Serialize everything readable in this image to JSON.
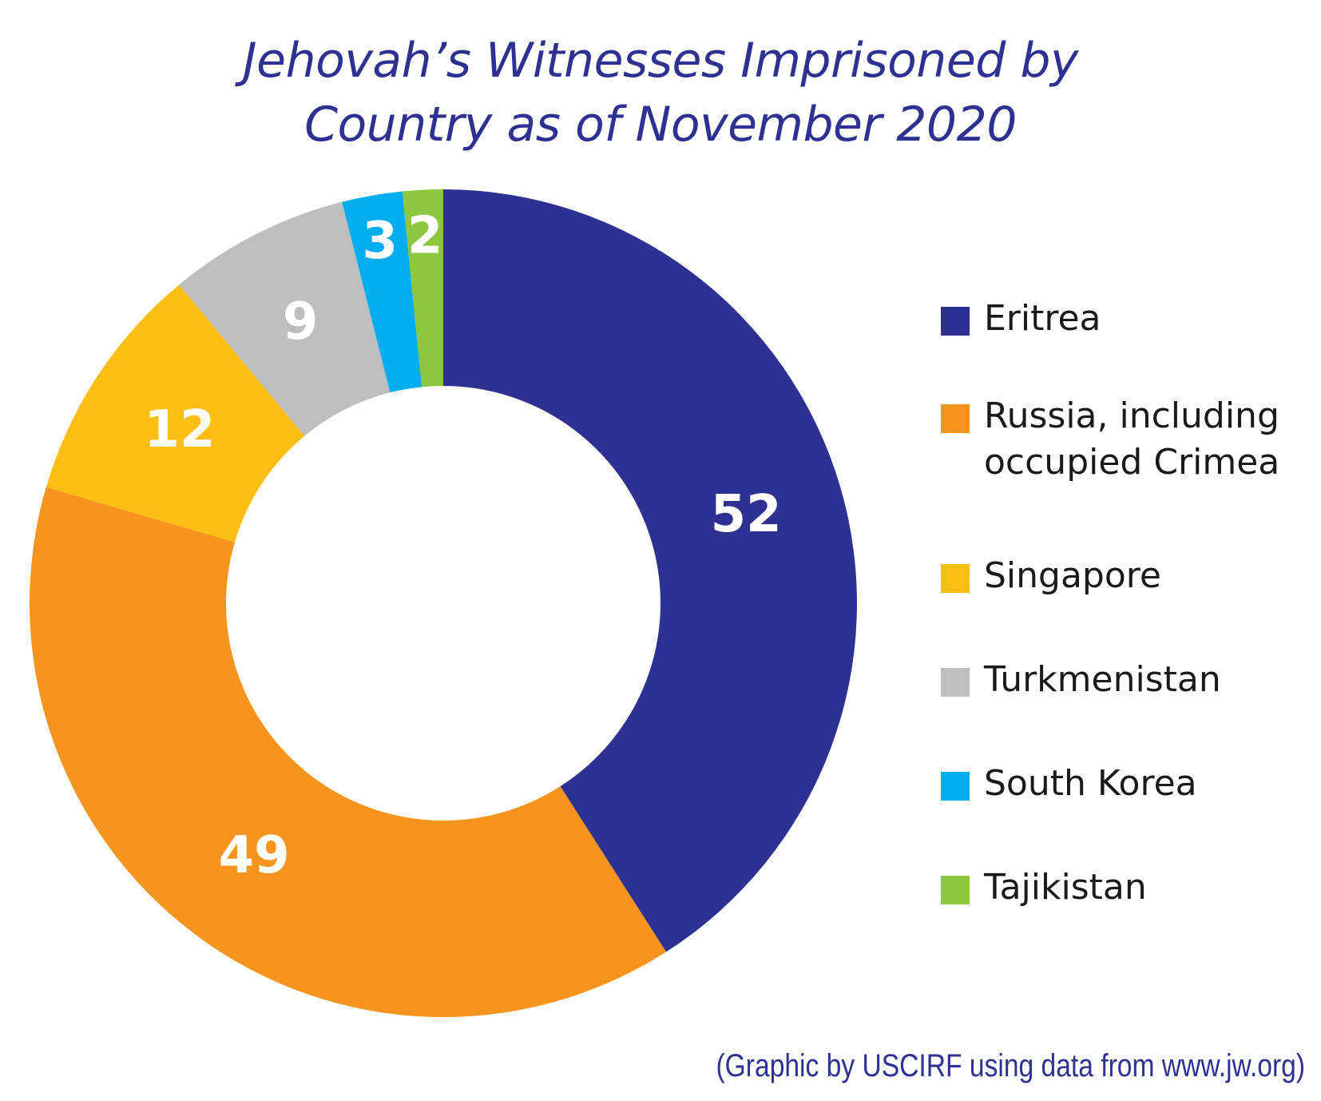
{
  "chart_data": {
    "type": "pie",
    "title": "Jehovah’s Witnesses Imprisoned by Country as of November 2020",
    "title_lines": [
      "Jehovah’s Witnesses Imprisoned by",
      "Country as of November 2020"
    ],
    "categories": [
      "Eritrea",
      "Russia, including occupied Crimea",
      "Singapore",
      "Turkmenistan",
      "South Korea",
      "Tajikistan"
    ],
    "legend_labels": [
      "Eritrea",
      "Russia, including\noccupied Crimea",
      "Singapore",
      "Turkmenistan",
      "South Korea",
      "Tajikistan"
    ],
    "values": [
      52,
      49,
      12,
      9,
      3,
      2
    ],
    "colors": [
      "#2e3192",
      "#f7941d",
      "#fdbe14",
      "#bcbec0",
      "#00aeef",
      "#8dc63f"
    ],
    "donut": true,
    "legend_position": "right",
    "start": "top, clockwise"
  },
  "caption": "(Graphic by USCIRF using data from www.jw.org)"
}
